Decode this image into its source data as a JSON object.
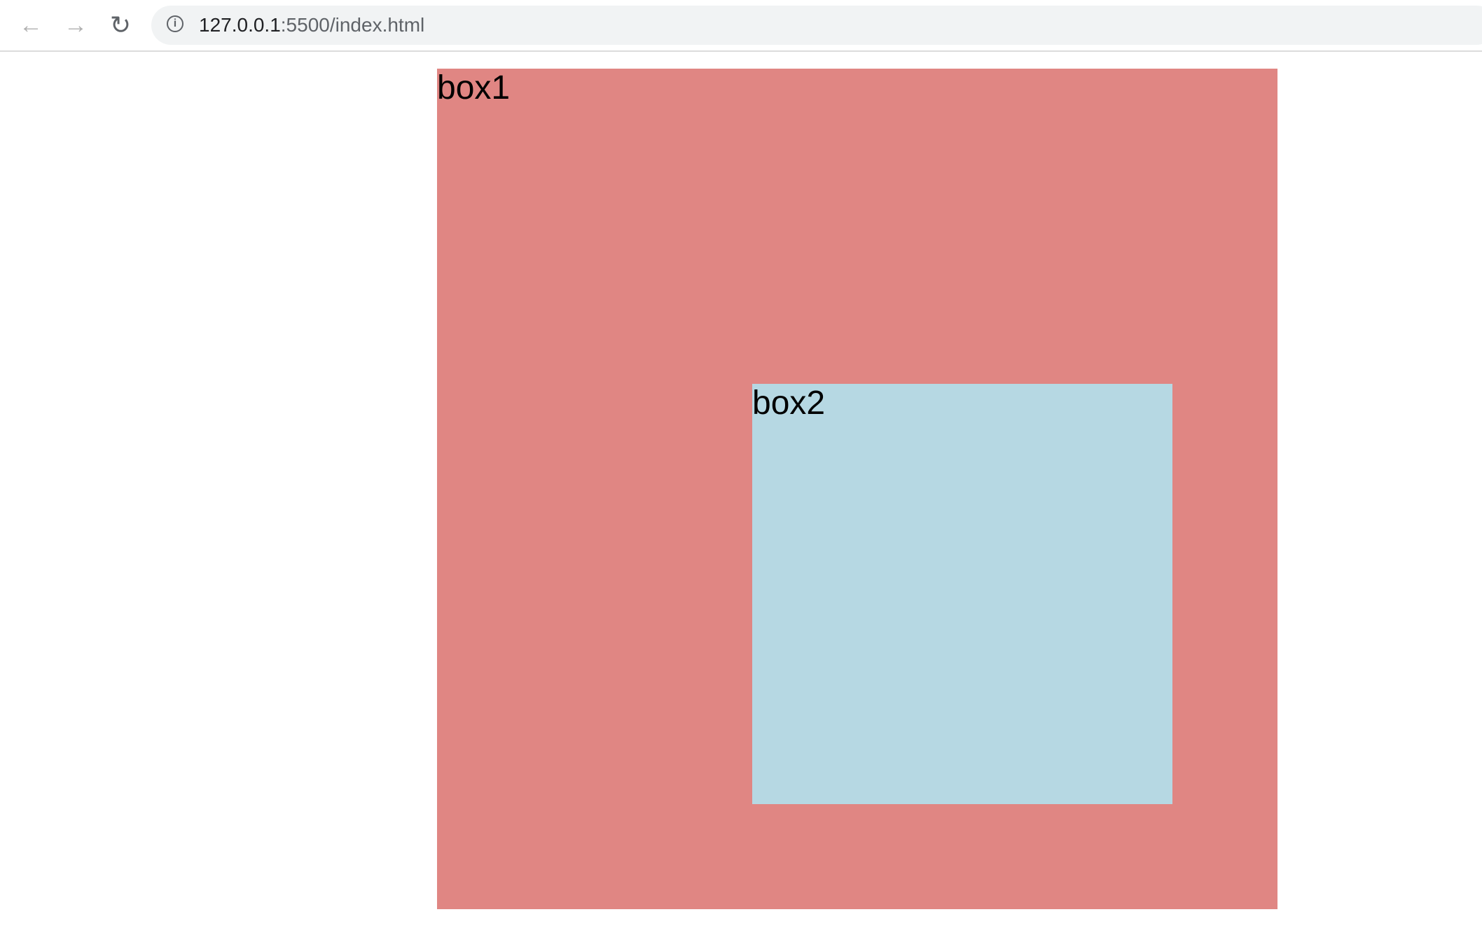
{
  "browser": {
    "back_icon": "arrow-left",
    "forward_icon": "arrow-right",
    "reload_icon": "reload",
    "info_icon": "info-circle",
    "url_host": "127.0.0.1",
    "url_rest": ":5500/index.html"
  },
  "page": {
    "box1": {
      "label": "box1",
      "color": "#e08683"
    },
    "box2": {
      "label": "box2",
      "color": "#b6d8e3"
    }
  }
}
